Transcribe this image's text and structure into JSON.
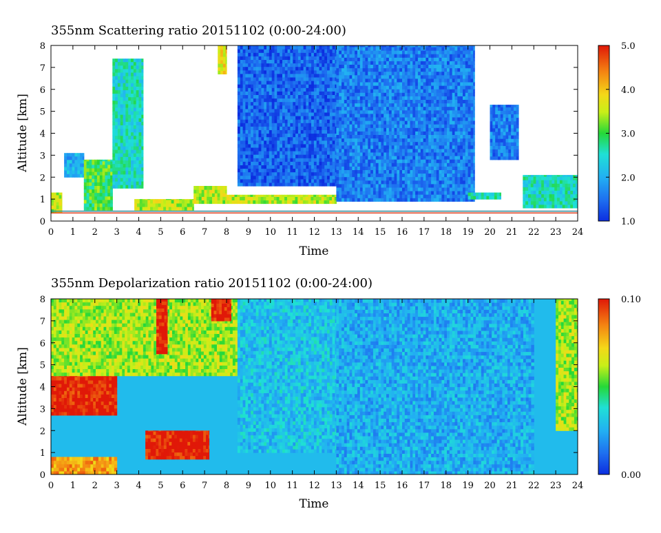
{
  "chart_data": [
    {
      "type": "heatmap",
      "title": "355nm Scattering ratio  20151102 (0:00-24:00)",
      "xlabel": "Time",
      "ylabel": "Altitude [km]",
      "xlim": [
        0,
        24
      ],
      "ylim": [
        0,
        8
      ],
      "x_ticks": [
        "0",
        "1",
        "2",
        "3",
        "4",
        "5",
        "6",
        "7",
        "8",
        "9",
        "10",
        "11",
        "12",
        "13",
        "14",
        "15",
        "16",
        "17",
        "18",
        "19",
        "20",
        "21",
        "22",
        "23",
        "24"
      ],
      "y_ticks": [
        "0",
        "1",
        "2",
        "3",
        "4",
        "5",
        "6",
        "7",
        "8"
      ],
      "colorbar": {
        "min": 1.0,
        "max": 5.0,
        "ticks": [
          "1.0",
          "2.0",
          "3.0",
          "4.0",
          "5.0"
        ]
      },
      "features": [
        {
          "t": [
            0.0,
            0.5
          ],
          "z": [
            0.4,
            1.3
          ],
          "value": 3.5
        },
        {
          "t": [
            0.6,
            1.5
          ],
          "z": [
            2.0,
            3.1
          ],
          "value": 2.0
        },
        {
          "t": [
            1.5,
            2.8
          ],
          "z": [
            0.5,
            2.8
          ],
          "value": 3.0
        },
        {
          "t": [
            2.8,
            4.2
          ],
          "z": [
            1.5,
            7.4
          ],
          "value": 2.5
        },
        {
          "t": [
            3.8,
            6.5
          ],
          "z": [
            0.5,
            1.0
          ],
          "value": 3.5
        },
        {
          "t": [
            6.5,
            8.0
          ],
          "z": [
            0.8,
            1.6
          ],
          "value": 3.5
        },
        {
          "t": [
            7.6,
            8.0
          ],
          "z": [
            6.7,
            8.0
          ],
          "value": 3.8
        },
        {
          "t": [
            8.5,
            13.0
          ],
          "z": [
            1.6,
            8.0
          ],
          "value": 1.4
        },
        {
          "t": [
            8.0,
            13.0
          ],
          "z": [
            0.8,
            1.2
          ],
          "value": 3.5
        },
        {
          "t": [
            13.0,
            19.3
          ],
          "z": [
            0.9,
            8.0
          ],
          "value": 1.6
        },
        {
          "t": [
            19.0,
            20.5
          ],
          "z": [
            1.0,
            1.3
          ],
          "value": 2.5
        },
        {
          "t": [
            20.0,
            21.3
          ],
          "z": [
            2.8,
            5.3
          ],
          "value": 1.6
        },
        {
          "t": [
            21.5,
            24.0
          ],
          "z": [
            0.6,
            2.1
          ],
          "value": 2.5
        }
      ]
    },
    {
      "type": "heatmap",
      "title": "355nm Depolarization ratio  20151102 (0:00-24:00)",
      "xlabel": "Time",
      "ylabel": "Altitude [km]",
      "xlim": [
        0,
        24
      ],
      "ylim": [
        0,
        8
      ],
      "x_ticks": [
        "0",
        "1",
        "2",
        "3",
        "4",
        "5",
        "6",
        "7",
        "8",
        "9",
        "10",
        "11",
        "12",
        "13",
        "14",
        "15",
        "16",
        "17",
        "18",
        "19",
        "20",
        "21",
        "22",
        "23",
        "24"
      ],
      "y_ticks": [
        "0",
        "1",
        "2",
        "3",
        "4",
        "5",
        "6",
        "7",
        "8"
      ],
      "colorbar": {
        "min": 0.0,
        "max": 0.1,
        "ticks": [
          "0.00",
          "0.10"
        ]
      },
      "features": [
        {
          "t": [
            0.0,
            3.0
          ],
          "z": [
            0.0,
            0.8
          ],
          "value": 0.08
        },
        {
          "t": [
            0.0,
            3.0
          ],
          "z": [
            2.7,
            4.7
          ],
          "value": 0.1
        },
        {
          "t": [
            0.0,
            8.5
          ],
          "z": [
            4.5,
            8.0
          ],
          "value": 0.06
        },
        {
          "t": [
            4.3,
            7.2
          ],
          "z": [
            0.7,
            2.0
          ],
          "value": 0.1
        },
        {
          "t": [
            4.8,
            5.3
          ],
          "z": [
            5.5,
            8.0
          ],
          "value": 0.1
        },
        {
          "t": [
            7.3,
            8.2
          ],
          "z": [
            7.0,
            8.0
          ],
          "value": 0.1
        },
        {
          "t": [
            8.5,
            13.0
          ],
          "z": [
            1.0,
            8.0
          ],
          "value": 0.03
        },
        {
          "t": [
            13.0,
            22.0
          ],
          "z": [
            0.0,
            8.0
          ],
          "value": 0.025
        },
        {
          "t": [
            23.0,
            24.0
          ],
          "z": [
            2.0,
            8.0
          ],
          "value": 0.06
        }
      ]
    }
  ]
}
